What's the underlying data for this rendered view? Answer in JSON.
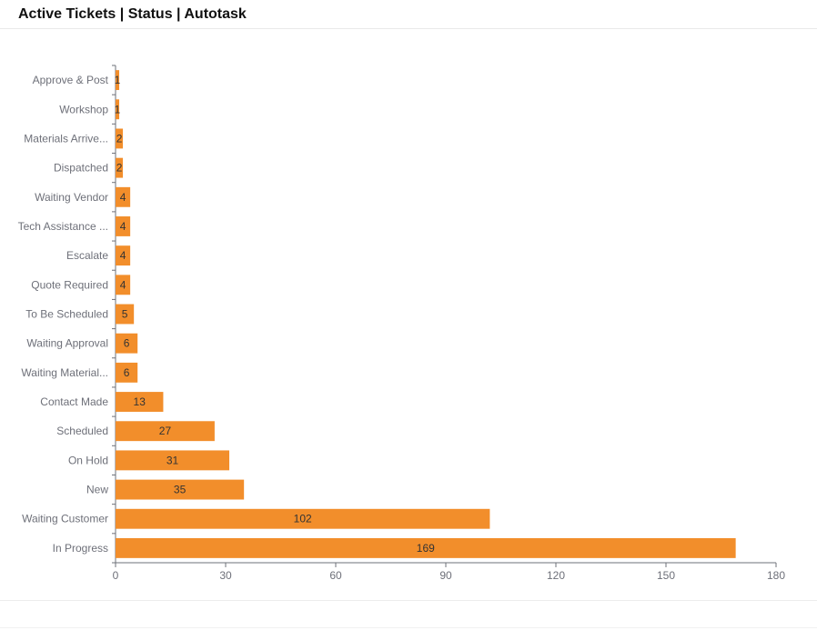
{
  "header": {
    "title": "Active Tickets | Status | Autotask"
  },
  "chart_data": {
    "type": "bar",
    "orientation": "horizontal",
    "title": "Active Tickets | Status | Autotask",
    "categories": [
      "Approve & Post",
      "Workshop",
      "Materials Arrive...",
      "Dispatched",
      "Waiting Vendor",
      "Tech Assistance ...",
      "Escalate",
      "Quote Required",
      "To Be Scheduled",
      "Waiting Approval",
      "Waiting Material...",
      "Contact Made",
      "Scheduled",
      "On Hold",
      "New",
      "Waiting Customer",
      "In Progress"
    ],
    "values": [
      1,
      1,
      2,
      2,
      4,
      4,
      4,
      4,
      5,
      6,
      6,
      13,
      27,
      31,
      35,
      102,
      169
    ],
    "value_labels": [
      "1",
      "1",
      "2",
      "2",
      "4",
      "4",
      "4",
      "4",
      "5",
      "6",
      "6",
      "13",
      "27",
      "31",
      "35",
      "102",
      "169"
    ],
    "xticks": [
      0,
      30,
      60,
      90,
      120,
      150,
      180
    ],
    "xtick_labels": [
      "0",
      "30",
      "60",
      "90",
      "120",
      "150",
      "180"
    ],
    "xlim": [
      0,
      180
    ],
    "xlabel": "",
    "ylabel": "",
    "grid": false,
    "legend": "none",
    "bar_color": "#f28e2b"
  }
}
